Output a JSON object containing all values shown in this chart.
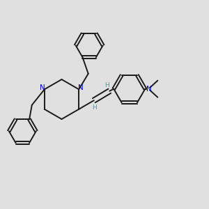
{
  "bg_color": "#e0e0e0",
  "bond_color": "#1a1a1a",
  "N_color": "#0000cc",
  "H_color": "#5f9595",
  "lw": 1.4,
  "dbo": 0.012,
  "figsize": [
    3.0,
    3.0
  ],
  "dpi": 100,
  "xlim": [
    0,
    1
  ],
  "ylim": [
    0,
    1
  ]
}
